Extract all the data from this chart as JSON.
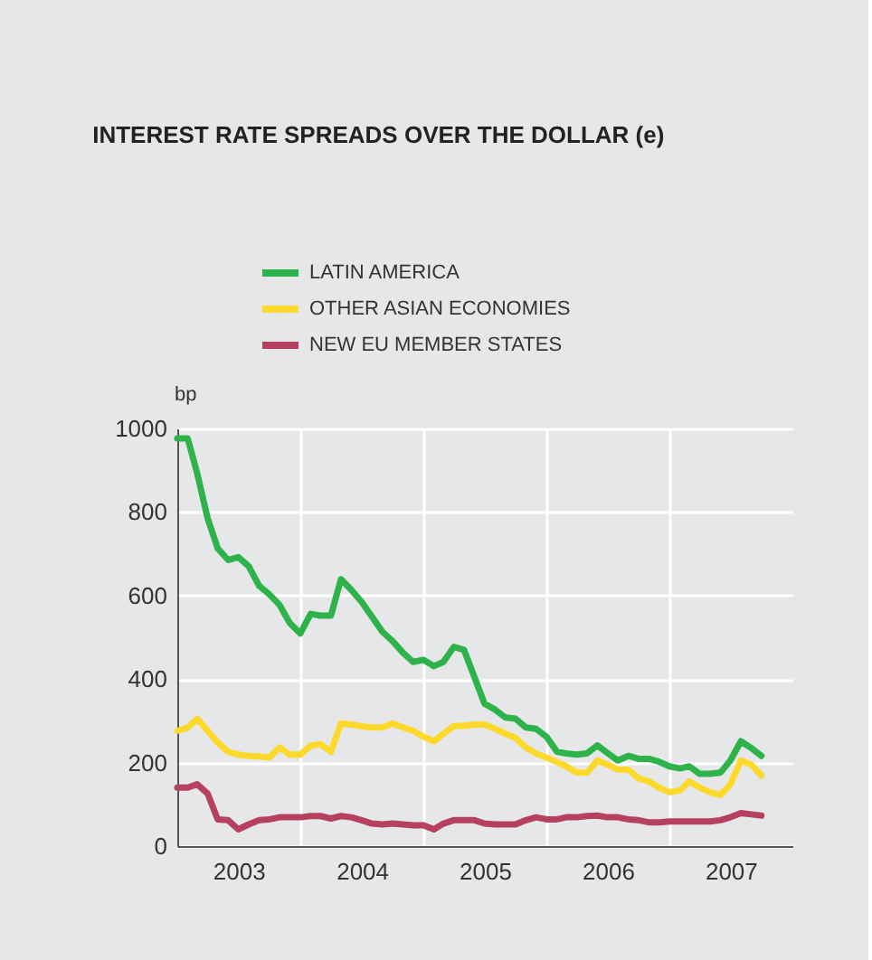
{
  "chart_data": {
    "type": "line",
    "title": "INTEREST RATE SPREADS OVER THE DOLLAR (e)",
    "ylabel": "bp",
    "x": [
      "2003-01",
      "2003-02",
      "2003-03",
      "2003-04",
      "2003-05",
      "2003-06",
      "2003-07",
      "2003-08",
      "2003-09",
      "2003-10",
      "2003-11",
      "2003-12",
      "2004-01",
      "2004-02",
      "2004-03",
      "2004-04",
      "2004-05",
      "2004-06",
      "2004-07",
      "2004-08",
      "2004-09",
      "2004-10",
      "2004-11",
      "2004-12",
      "2005-01",
      "2005-02",
      "2005-03",
      "2005-04",
      "2005-05",
      "2005-06",
      "2005-07",
      "2005-08",
      "2005-09",
      "2005-10",
      "2005-11",
      "2005-12",
      "2006-01",
      "2006-02",
      "2006-03",
      "2006-04",
      "2006-05",
      "2006-06",
      "2006-07",
      "2006-08",
      "2006-09",
      "2006-10",
      "2006-11",
      "2006-12",
      "2007-01",
      "2007-02",
      "2007-03",
      "2007-04",
      "2007-05",
      "2007-06",
      "2007-07",
      "2007-08",
      "2007-09",
      "2007-10"
    ],
    "series": [
      {
        "name": "LATIN AMERICA",
        "color": "#2db34a",
        "values": [
          976,
          976,
          893,
          785,
          713,
          685,
          692,
          670,
          623,
          603,
          577,
          534,
          509,
          556,
          552,
          552,
          639,
          613,
          585,
          549,
          513,
          491,
          463,
          441,
          446,
          431,
          441,
          477,
          470,
          405,
          341,
          327,
          308,
          305,
          284,
          281,
          262,
          226,
          222,
          219,
          222,
          241,
          223,
          205,
          216,
          209,
          209,
          202,
          191,
          186,
          191,
          173,
          173,
          176,
          205,
          251,
          235,
          216
        ]
      },
      {
        "name": "OTHER ASIAN ECONOMIES",
        "color": "#fcd92a",
        "values": [
          276,
          284,
          305,
          276,
          248,
          226,
          219,
          216,
          215,
          212,
          236,
          219,
          219,
          241,
          244,
          226,
          294,
          291,
          287,
          284,
          284,
          294,
          284,
          276,
          262,
          251,
          269,
          288,
          288,
          291,
          291,
          281,
          269,
          259,
          236,
          222,
          212,
          201,
          191,
          176,
          176,
          205,
          195,
          183,
          183,
          162,
          155,
          140,
          129,
          133,
          155,
          140,
          129,
          122,
          148,
          205,
          195,
          169
        ]
      },
      {
        "name": "NEW EU MEMBER STATES",
        "color": "#b5405f",
        "values": [
          140,
          140,
          148,
          126,
          64,
          62,
          40,
          52,
          62,
          64,
          69,
          69,
          69,
          72,
          72,
          66,
          72,
          69,
          62,
          54,
          52,
          54,
          52,
          50,
          50,
          40,
          54,
          62,
          62,
          62,
          54,
          52,
          52,
          52,
          62,
          69,
          64,
          64,
          69,
          69,
          72,
          73,
          69,
          69,
          64,
          62,
          57,
          57,
          59,
          59,
          59,
          59,
          59,
          62,
          69,
          79,
          76,
          73
        ]
      }
    ],
    "xlim": [
      "2003-01-01",
      "2008-01-01"
    ],
    "xticks": [
      {
        "value": "2004-01-01",
        "label": null
      },
      {
        "value": "2005-01-01",
        "label": null
      },
      {
        "value": "2006-01-01",
        "label": null
      },
      {
        "value": "2007-01-01",
        "label": null
      },
      {
        "value": "2003-07-02",
        "label": "2003"
      },
      {
        "value": "2004-07-02",
        "label": "2004"
      },
      {
        "value": "2005-07-02",
        "label": "2005"
      },
      {
        "value": "2006-07-02",
        "label": "2006"
      },
      {
        "value": "2007-07-02",
        "label": "2007"
      }
    ],
    "ylim": [
      0,
      1000
    ],
    "yticks": [
      0,
      200,
      400,
      600,
      800,
      1000
    ],
    "grid": true,
    "legend": "top",
    "line_style": "solid"
  }
}
